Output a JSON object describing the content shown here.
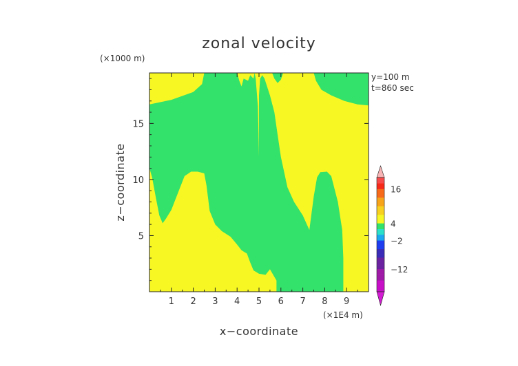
{
  "chart_data": {
    "type": "heatmap",
    "title": "zonal velocity",
    "xlabel": "x−coordinate",
    "ylabel": "z−coordinate",
    "x_unit": "(×1E4 m)",
    "y_unit": "(×1000 m)",
    "annotations": [
      "y=100 m",
      "t=860 sec"
    ],
    "xlim": [
      0,
      10
    ],
    "ylim": [
      0,
      19.5
    ],
    "x_ticks": [
      1,
      2,
      3,
      4,
      5,
      6,
      7,
      8,
      9
    ],
    "y_ticks": [
      5,
      10,
      15
    ],
    "colorbar": {
      "tick_labels": [
        "16",
        "4",
        "−2",
        "−12"
      ],
      "tick_values": [
        16,
        4,
        -2,
        -12
      ],
      "range": [
        -20,
        20
      ]
    },
    "regions": [
      {
        "name": "green",
        "color": "#33e26a",
        "value_range": [
          0,
          2
        ],
        "polygons": [
          [
            [
              0,
              16.7
            ],
            [
              1,
              17.1
            ],
            [
              2,
              17.8
            ],
            [
              2.4,
              18.5
            ],
            [
              2.5,
              19.5
            ],
            [
              4.0,
              19.5
            ],
            [
              4.1,
              18.8
            ],
            [
              4.2,
              18.3
            ],
            [
              4.3,
              19.0
            ],
            [
              4.5,
              18.8
            ],
            [
              4.6,
              19.3
            ],
            [
              4.75,
              19.0
            ],
            [
              4.8,
              19.5
            ],
            [
              4.85,
              19.0
            ],
            [
              4.95,
              16.5
            ],
            [
              5.0,
              12.0
            ],
            [
              5.0,
              1.6
            ],
            [
              4.75,
              1.9
            ],
            [
              4.6,
              2.6
            ],
            [
              4.45,
              3.4
            ],
            [
              4.2,
              3.7
            ],
            [
              4.0,
              4.2
            ],
            [
              3.7,
              4.9
            ],
            [
              3.3,
              5.4
            ],
            [
              3.0,
              6.0
            ],
            [
              2.75,
              7.2
            ],
            [
              2.6,
              9.5
            ],
            [
              2.5,
              10.55
            ],
            [
              2.2,
              10.7
            ],
            [
              1.9,
              10.7
            ],
            [
              1.6,
              10.3
            ],
            [
              1.3,
              8.8
            ],
            [
              1.0,
              7.3
            ],
            [
              0.75,
              6.5
            ],
            [
              0.6,
              6.1
            ],
            [
              0.45,
              6.8
            ],
            [
              0.3,
              8.3
            ],
            [
              0.12,
              10.2
            ],
            [
              0,
              11.0
            ]
          ],
          [
            [
              5.0,
              1.6
            ],
            [
              5.0,
              12.0
            ],
            [
              5.0,
              17.5
            ],
            [
              5.05,
              19.0
            ],
            [
              5.15,
              19.3
            ],
            [
              5.25,
              19.0
            ],
            [
              5.5,
              17.5
            ],
            [
              5.7,
              16.0
            ],
            [
              5.85,
              14.0
            ],
            [
              6.0,
              12.0
            ],
            [
              6.3,
              9.3
            ],
            [
              6.6,
              8.0
            ],
            [
              7.0,
              6.8
            ],
            [
              7.3,
              5.5
            ],
            [
              7.5,
              8.5
            ],
            [
              7.65,
              10.2
            ],
            [
              7.8,
              10.65
            ],
            [
              8.1,
              10.7
            ],
            [
              8.3,
              10.3
            ],
            [
              8.6,
              8.0
            ],
            [
              8.8,
              5.5
            ],
            [
              8.85,
              3.0
            ],
            [
              8.85,
              0
            ],
            [
              5.8,
              0
            ],
            [
              5.8,
              1.0
            ],
            [
              5.5,
              2.0
            ],
            [
              5.3,
              1.5
            ]
          ],
          [
            [
              5.6,
              19.5
            ],
            [
              5.7,
              19.0
            ],
            [
              5.85,
              18.6
            ],
            [
              6.0,
              18.9
            ],
            [
              6.1,
              19.5
            ]
          ],
          [
            [
              7.5,
              19.5
            ],
            [
              7.6,
              18.8
            ],
            [
              7.85,
              18.0
            ],
            [
              8.3,
              17.5
            ],
            [
              8.9,
              17.0
            ],
            [
              9.5,
              16.7
            ],
            [
              10,
              16.6
            ],
            [
              10,
              19.5
            ]
          ]
        ]
      },
      {
        "name": "yellow",
        "color": "#f7f724",
        "value_range": [
          2,
          4
        ]
      }
    ]
  }
}
